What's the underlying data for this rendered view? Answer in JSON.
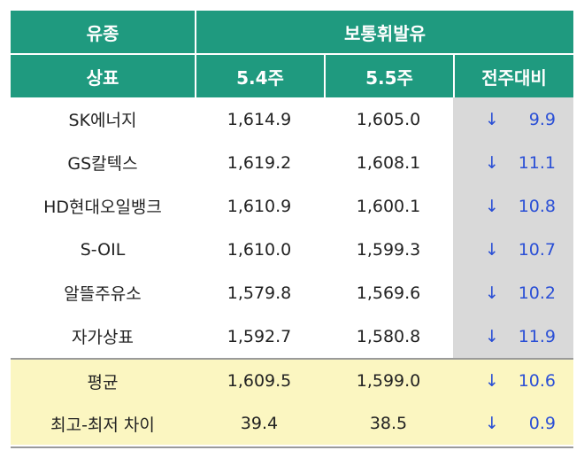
{
  "header": {
    "col0_top": "유종",
    "group": "보통휘발유",
    "col0": "상표",
    "col1": "5.4주",
    "col2": "5.5주",
    "col3": "전주대비"
  },
  "rows": [
    {
      "brand": "SK에너지",
      "w1": "1,614.9",
      "w2": "1,605.0",
      "arrow": "↓",
      "diff": "9.9"
    },
    {
      "brand": "GS칼텍스",
      "w1": "1,619.2",
      "w2": "1,608.1",
      "arrow": "↓",
      "diff": "11.1"
    },
    {
      "brand": "HD현대오일뱅크",
      "w1": "1,610.9",
      "w2": "1,600.1",
      "arrow": "↓",
      "diff": "10.8"
    },
    {
      "brand": "S-OIL",
      "w1": "1,610.0",
      "w2": "1,599.3",
      "arrow": "↓",
      "diff": "10.7"
    },
    {
      "brand": "알뜰주유소",
      "w1": "1,579.8",
      "w2": "1,569.6",
      "arrow": "↓",
      "diff": "10.2"
    },
    {
      "brand": "자가상표",
      "w1": "1,592.7",
      "w2": "1,580.8",
      "arrow": "↓",
      "diff": "11.9"
    }
  ],
  "footer": [
    {
      "brand": "평균",
      "w1": "1,609.5",
      "w2": "1,599.0",
      "arrow": "↓",
      "diff": "10.6"
    },
    {
      "brand": "최고-최저 차이",
      "w1": "39.4",
      "w2": "38.5",
      "arrow": "↓",
      "diff": "0.9"
    }
  ],
  "colors": {
    "header_bg": "#1f9a7f",
    "change_col_bg": "#d9d9d9",
    "footer_bg": "#fbf6c1",
    "decrease_text": "#2a4fd6"
  }
}
